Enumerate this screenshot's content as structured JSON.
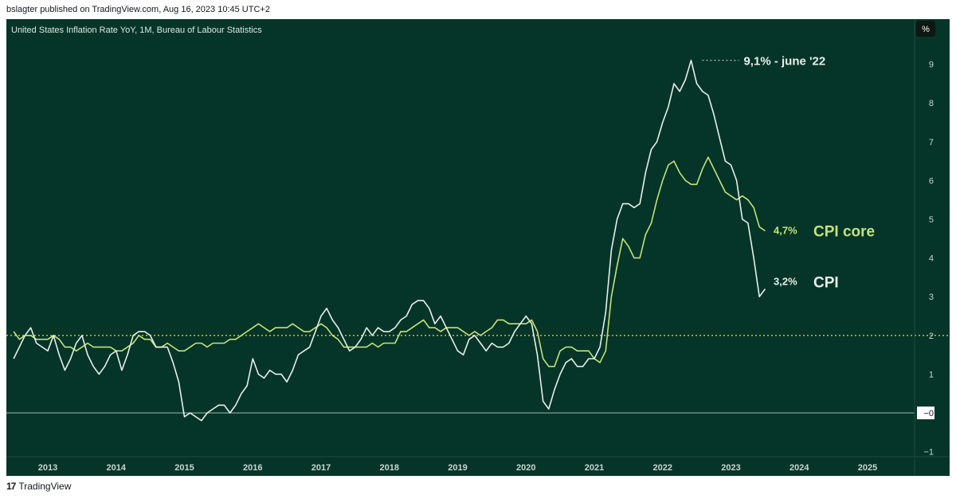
{
  "header": {
    "published": "bslagter published on TradingView.com, Aug 16, 2023 10:45 UTC+2"
  },
  "footer": {
    "logo_mark": "17",
    "brand": "TradingView"
  },
  "colors": {
    "background": "#053528",
    "cpi": "#e8efe9",
    "core": "#c4e27a",
    "target": "#e0b21f",
    "zero": "#9fb8ae"
  },
  "chart_data": {
    "type": "line",
    "title": "United States Inflation Rate YoY, 1M, Bureau of Labour Statistics",
    "unit": "%",
    "x_ticks": [
      "2013",
      "2014",
      "2015",
      "2016",
      "2017",
      "2018",
      "2019",
      "2020",
      "2021",
      "2022",
      "2023",
      "2024",
      "2025"
    ],
    "y_ticks": [
      "−1",
      "−0",
      "1",
      "2",
      "3",
      "4",
      "5",
      "6",
      "7",
      "8",
      "9"
    ],
    "ylim": [
      -1,
      9.9
    ],
    "reference_line": 2,
    "series": [
      {
        "name": "CPI",
        "x": [
          "2012-07",
          "2012-08",
          "2012-09",
          "2012-10",
          "2012-11",
          "2012-12",
          "2013-01",
          "2013-02",
          "2013-03",
          "2013-04",
          "2013-05",
          "2013-06",
          "2013-07",
          "2013-08",
          "2013-09",
          "2013-10",
          "2013-11",
          "2013-12",
          "2014-01",
          "2014-02",
          "2014-03",
          "2014-04",
          "2014-05",
          "2014-06",
          "2014-07",
          "2014-08",
          "2014-09",
          "2014-10",
          "2014-11",
          "2014-12",
          "2015-01",
          "2015-02",
          "2015-03",
          "2015-04",
          "2015-05",
          "2015-06",
          "2015-07",
          "2015-08",
          "2015-09",
          "2015-10",
          "2015-11",
          "2015-12",
          "2016-01",
          "2016-02",
          "2016-03",
          "2016-04",
          "2016-05",
          "2016-06",
          "2016-07",
          "2016-08",
          "2016-09",
          "2016-10",
          "2016-11",
          "2016-12",
          "2017-01",
          "2017-02",
          "2017-03",
          "2017-04",
          "2017-05",
          "2017-06",
          "2017-07",
          "2017-08",
          "2017-09",
          "2017-10",
          "2017-11",
          "2017-12",
          "2018-01",
          "2018-02",
          "2018-03",
          "2018-04",
          "2018-05",
          "2018-06",
          "2018-07",
          "2018-08",
          "2018-09",
          "2018-10",
          "2018-11",
          "2018-12",
          "2019-01",
          "2019-02",
          "2019-03",
          "2019-04",
          "2019-05",
          "2019-06",
          "2019-07",
          "2019-08",
          "2019-09",
          "2019-10",
          "2019-11",
          "2019-12",
          "2020-01",
          "2020-02",
          "2020-03",
          "2020-04",
          "2020-05",
          "2020-06",
          "2020-07",
          "2020-08",
          "2020-09",
          "2020-10",
          "2020-11",
          "2020-12",
          "2021-01",
          "2021-02",
          "2021-03",
          "2021-04",
          "2021-05",
          "2021-06",
          "2021-07",
          "2021-08",
          "2021-09",
          "2021-10",
          "2021-11",
          "2021-12",
          "2022-01",
          "2022-02",
          "2022-03",
          "2022-04",
          "2022-05",
          "2022-06",
          "2022-07",
          "2022-08",
          "2022-09",
          "2022-10",
          "2022-11",
          "2022-12",
          "2023-01",
          "2023-02",
          "2023-03",
          "2023-04",
          "2023-05",
          "2023-06",
          "2023-07"
        ],
        "values": [
          1.4,
          1.7,
          2.0,
          2.2,
          1.8,
          1.7,
          1.6,
          2.0,
          1.5,
          1.1,
          1.4,
          1.8,
          2.0,
          1.5,
          1.2,
          1.0,
          1.2,
          1.5,
          1.6,
          1.1,
          1.5,
          2.0,
          2.1,
          2.1,
          2.0,
          1.7,
          1.7,
          1.7,
          1.3,
          0.8,
          -0.1,
          0.0,
          -0.1,
          -0.2,
          0.0,
          0.1,
          0.2,
          0.2,
          0.0,
          0.2,
          0.5,
          0.7,
          1.4,
          1.0,
          0.9,
          1.1,
          1.0,
          1.0,
          0.8,
          1.1,
          1.5,
          1.6,
          1.7,
          2.1,
          2.5,
          2.7,
          2.4,
          2.2,
          1.9,
          1.6,
          1.7,
          1.9,
          2.2,
          2.0,
          2.2,
          2.1,
          2.1,
          2.2,
          2.4,
          2.5,
          2.8,
          2.9,
          2.9,
          2.7,
          2.3,
          2.5,
          2.2,
          1.9,
          1.6,
          1.5,
          1.9,
          2.0,
          1.8,
          1.6,
          1.8,
          1.7,
          1.7,
          1.8,
          2.1,
          2.3,
          2.5,
          2.3,
          1.5,
          0.3,
          0.1,
          0.6,
          1.0,
          1.3,
          1.4,
          1.2,
          1.2,
          1.4,
          1.4,
          1.7,
          2.6,
          4.2,
          5.0,
          5.4,
          5.4,
          5.3,
          5.4,
          6.2,
          6.8,
          7.0,
          7.5,
          7.9,
          8.5,
          8.3,
          8.6,
          9.1,
          8.5,
          8.3,
          8.2,
          7.7,
          7.1,
          6.5,
          6.4,
          6.0,
          5.0,
          4.9,
          4.0,
          3.0,
          3.2
        ]
      },
      {
        "name": "CPI core",
        "x": [
          "2012-07",
          "2012-08",
          "2012-09",
          "2012-10",
          "2012-11",
          "2012-12",
          "2013-01",
          "2013-02",
          "2013-03",
          "2013-04",
          "2013-05",
          "2013-06",
          "2013-07",
          "2013-08",
          "2013-09",
          "2013-10",
          "2013-11",
          "2013-12",
          "2014-01",
          "2014-02",
          "2014-03",
          "2014-04",
          "2014-05",
          "2014-06",
          "2014-07",
          "2014-08",
          "2014-09",
          "2014-10",
          "2014-11",
          "2014-12",
          "2015-01",
          "2015-02",
          "2015-03",
          "2015-04",
          "2015-05",
          "2015-06",
          "2015-07",
          "2015-08",
          "2015-09",
          "2015-10",
          "2015-11",
          "2015-12",
          "2016-01",
          "2016-02",
          "2016-03",
          "2016-04",
          "2016-05",
          "2016-06",
          "2016-07",
          "2016-08",
          "2016-09",
          "2016-10",
          "2016-11",
          "2016-12",
          "2017-01",
          "2017-02",
          "2017-03",
          "2017-04",
          "2017-05",
          "2017-06",
          "2017-07",
          "2017-08",
          "2017-09",
          "2017-10",
          "2017-11",
          "2017-12",
          "2018-01",
          "2018-02",
          "2018-03",
          "2018-04",
          "2018-05",
          "2018-06",
          "2018-07",
          "2018-08",
          "2018-09",
          "2018-10",
          "2018-11",
          "2018-12",
          "2019-01",
          "2019-02",
          "2019-03",
          "2019-04",
          "2019-05",
          "2019-06",
          "2019-07",
          "2019-08",
          "2019-09",
          "2019-10",
          "2019-11",
          "2019-12",
          "2020-01",
          "2020-02",
          "2020-03",
          "2020-04",
          "2020-05",
          "2020-06",
          "2020-07",
          "2020-08",
          "2020-09",
          "2020-10",
          "2020-11",
          "2020-12",
          "2021-01",
          "2021-02",
          "2021-03",
          "2021-04",
          "2021-05",
          "2021-06",
          "2021-07",
          "2021-08",
          "2021-09",
          "2021-10",
          "2021-11",
          "2021-12",
          "2022-01",
          "2022-02",
          "2022-03",
          "2022-04",
          "2022-05",
          "2022-06",
          "2022-07",
          "2022-08",
          "2022-09",
          "2022-10",
          "2022-11",
          "2022-12",
          "2023-01",
          "2023-02",
          "2023-03",
          "2023-04",
          "2023-05",
          "2023-06",
          "2023-07"
        ],
        "values": [
          2.1,
          1.9,
          2.0,
          2.0,
          1.9,
          1.9,
          1.9,
          2.0,
          1.9,
          1.7,
          1.7,
          1.6,
          1.7,
          1.8,
          1.7,
          1.7,
          1.7,
          1.7,
          1.6,
          1.6,
          1.7,
          1.8,
          2.0,
          1.9,
          1.9,
          1.7,
          1.7,
          1.8,
          1.7,
          1.6,
          1.6,
          1.7,
          1.8,
          1.8,
          1.7,
          1.8,
          1.8,
          1.8,
          1.9,
          1.9,
          2.0,
          2.1,
          2.2,
          2.3,
          2.2,
          2.1,
          2.2,
          2.2,
          2.2,
          2.3,
          2.2,
          2.1,
          2.1,
          2.2,
          2.3,
          2.2,
          2.0,
          1.9,
          1.7,
          1.7,
          1.7,
          1.7,
          1.7,
          1.8,
          1.7,
          1.8,
          1.8,
          1.8,
          2.1,
          2.1,
          2.2,
          2.3,
          2.4,
          2.2,
          2.2,
          2.1,
          2.2,
          2.2,
          2.2,
          2.1,
          2.0,
          2.1,
          2.0,
          2.1,
          2.2,
          2.4,
          2.4,
          2.3,
          2.3,
          2.3,
          2.3,
          2.4,
          2.1,
          1.4,
          1.2,
          1.2,
          1.6,
          1.7,
          1.7,
          1.6,
          1.6,
          1.6,
          1.4,
          1.3,
          1.6,
          3.0,
          3.8,
          4.5,
          4.3,
          4.0,
          4.0,
          4.6,
          4.9,
          5.5,
          6.0,
          6.4,
          6.5,
          6.2,
          6.0,
          5.9,
          5.9,
          6.3,
          6.6,
          6.3,
          6.0,
          5.7,
          5.6,
          5.5,
          5.6,
          5.5,
          5.3,
          4.8,
          4.7
        ]
      }
    ],
    "annotations": {
      "peak": "9,1% - june '22",
      "core_value": "4,7%",
      "core_label": "CPI core",
      "cpi_value": "3,2%",
      "cpi_label": "CPI"
    }
  }
}
